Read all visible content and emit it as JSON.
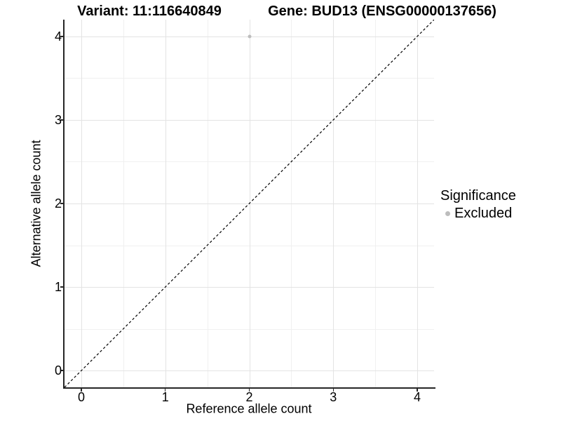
{
  "titles": {
    "variant": "Variant: 11:116640849",
    "gene": "Gene: BUD13 (ENSG00000137656)"
  },
  "chart_data": {
    "type": "scatter",
    "xlabel": "Reference allele count",
    "ylabel": "Alternative allele count",
    "xlim": [
      -0.2,
      4.2
    ],
    "ylim": [
      -0.2,
      4.2
    ],
    "x_ticks": [
      0,
      1,
      2,
      3,
      4
    ],
    "y_ticks": [
      0,
      1,
      2,
      3,
      4
    ],
    "x_minor_ticks": [
      0.5,
      1.5,
      2.5,
      3.5
    ],
    "y_minor_ticks": [
      0.5,
      1.5,
      2.5,
      3.5
    ],
    "grid": "on",
    "points": [
      {
        "x": 2,
        "y": 4,
        "series": "Excluded"
      }
    ],
    "reference_line": {
      "equation": "y = x",
      "style": "dashed",
      "x1": -0.2,
      "y1": -0.2,
      "x2": 4.2,
      "y2": 4.2
    },
    "legend": {
      "position": "right",
      "title": "Significance",
      "entries": [
        {
          "label": "Excluded",
          "marker": "circle",
          "color": "#bdbdbd"
        }
      ]
    },
    "colors": {
      "point": "#bdbdbd",
      "major_grid": "#e3e3e3",
      "minor_grid": "#f0f0f0",
      "axis_line": "#262626",
      "reference_line": "#000000",
      "text": "#000000"
    }
  }
}
